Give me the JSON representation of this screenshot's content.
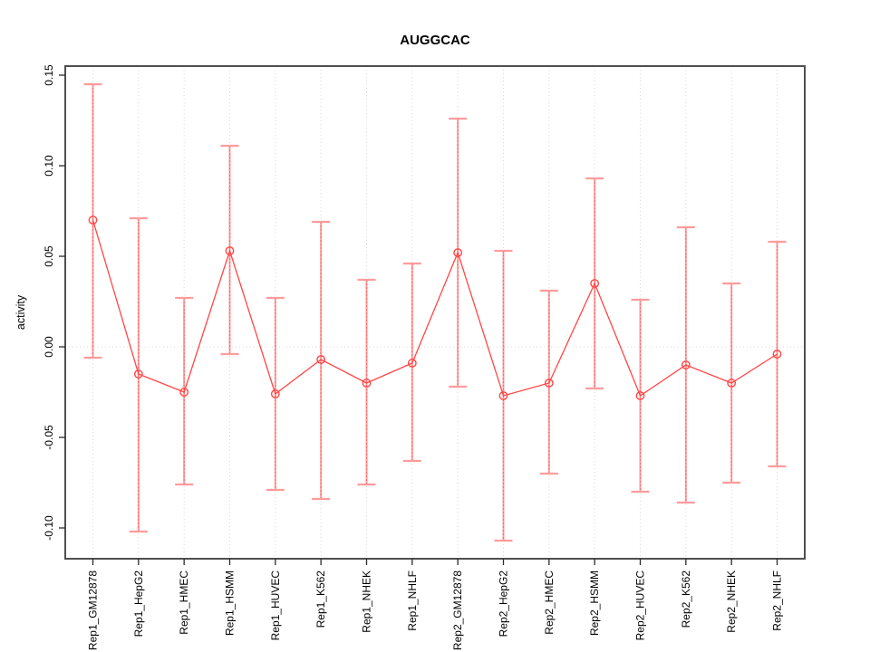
{
  "figure": {
    "background": "#ffffff"
  },
  "chart_data": {
    "type": "line",
    "title": "AUGGCAC",
    "xlabel": "",
    "ylabel": "activity",
    "categories": [
      "Rep1_GM12878",
      "Rep1_HepG2",
      "Rep1_HMEC",
      "Rep1_HSMM",
      "Rep1_HUVEC",
      "Rep1_K562",
      "Rep1_NHEK",
      "Rep1_NHLF",
      "Rep2_GM12878",
      "Rep2_HepG2",
      "Rep2_HMEC",
      "Rep2_HSMM",
      "Rep2_HUVEC",
      "Rep2_K562",
      "Rep2_NHEK",
      "Rep2_NHLF"
    ],
    "series": [
      {
        "name": "activity",
        "values": [
          0.07,
          -0.015,
          -0.025,
          0.053,
          -0.026,
          -0.007,
          -0.02,
          -0.009,
          0.052,
          -0.027,
          -0.02,
          0.035,
          -0.027,
          -0.01,
          -0.02,
          -0.004
        ],
        "upper": [
          0.145,
          0.071,
          0.027,
          0.111,
          0.027,
          0.069,
          0.037,
          0.046,
          0.126,
          0.053,
          0.031,
          0.093,
          0.026,
          0.066,
          0.035,
          0.058
        ],
        "lower": [
          -0.006,
          -0.102,
          -0.076,
          -0.004,
          -0.079,
          -0.084,
          -0.076,
          -0.063,
          -0.022,
          -0.107,
          -0.07,
          -0.023,
          -0.08,
          -0.086,
          -0.075,
          -0.066
        ]
      }
    ],
    "error_bars": true,
    "point_style": "open-circle",
    "ylim": [
      -0.117,
      0.155
    ],
    "yticks": [
      0.15,
      0.1,
      0.05,
      0.0,
      -0.05,
      -0.1
    ],
    "ytick_labels": [
      "0.15",
      "0.10",
      "0.05",
      "0.00",
      "-0.05",
      "-0.10"
    ],
    "grid": {
      "vertical_dotted_per_category": true,
      "horizontal_dotted_at_zero": true
    },
    "legend": "none",
    "colors": {
      "series": "#ff4646",
      "error_bar": "#ff9c9c",
      "error_bar_dash": "#f96d6d",
      "grid": "#d9d9d9",
      "box": "#4f4f4f",
      "tick": "#2b2b2b",
      "text": "#000000"
    }
  }
}
